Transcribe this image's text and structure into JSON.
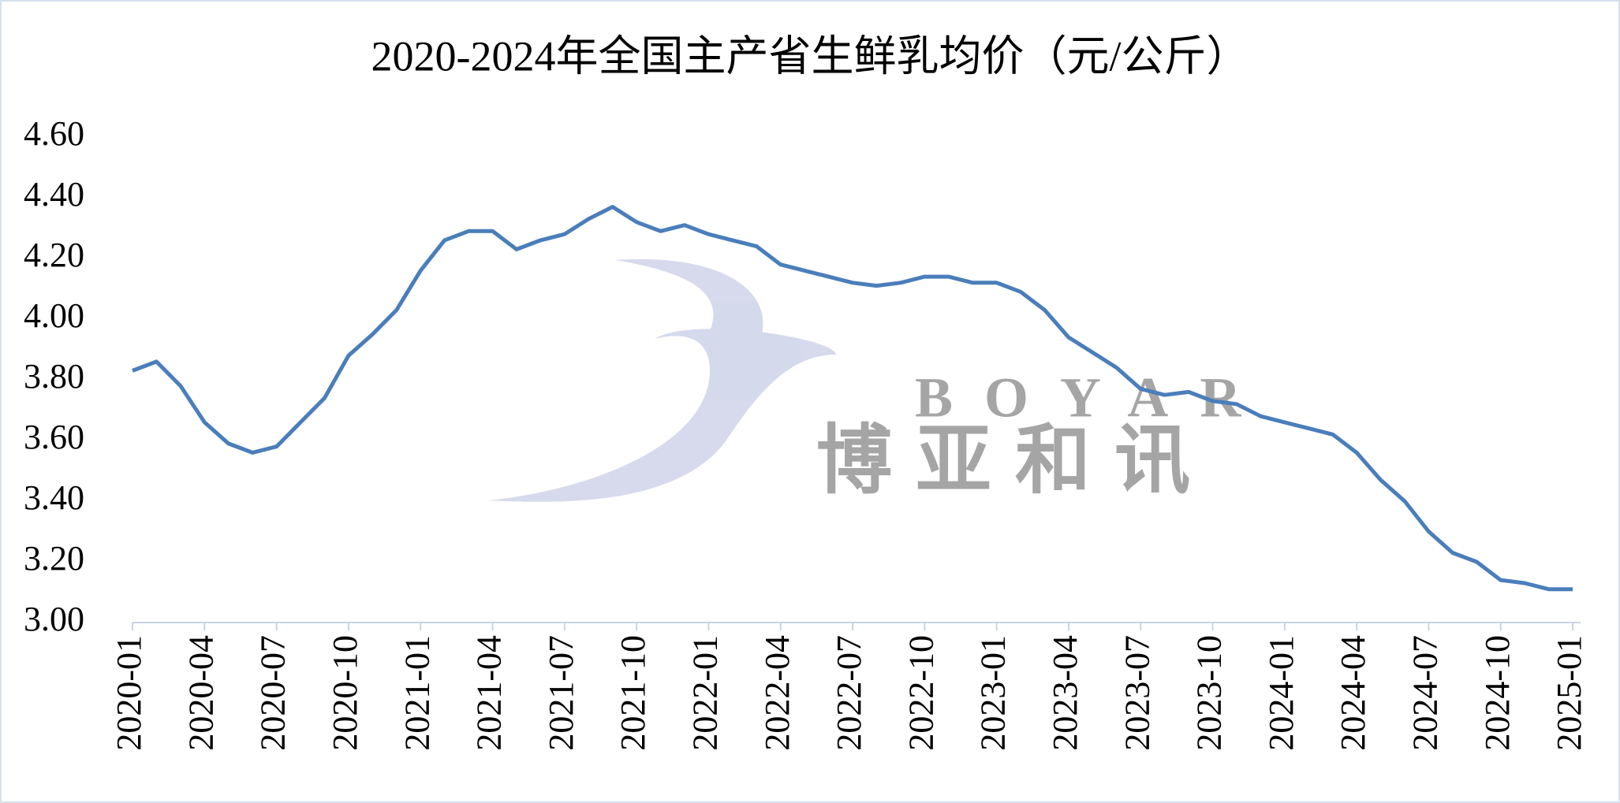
{
  "chart_data": {
    "type": "line",
    "title": "2020-2024年全国主产省生鲜乳均价（元/公斤）",
    "categories": [
      "2020-01",
      null,
      null,
      "2020-04",
      null,
      null,
      "2020-07",
      null,
      null,
      "2020-10",
      null,
      null,
      "2021-01",
      null,
      null,
      "2021-04",
      null,
      null,
      "2021-07",
      null,
      null,
      "2021-10",
      null,
      null,
      "2022-01",
      null,
      null,
      "2022-04",
      null,
      null,
      "2022-07",
      null,
      null,
      "2022-10",
      null,
      null,
      "2023-01",
      null,
      null,
      "2023-04",
      null,
      null,
      "2023-07",
      null,
      null,
      "2023-10",
      null,
      null,
      "2024-01",
      null,
      null,
      "2024-04",
      null,
      null,
      "2024-07",
      null,
      null,
      "2024-10",
      null,
      null,
      "2025-01"
    ],
    "values": [
      3.83,
      3.86,
      3.78,
      3.66,
      3.59,
      3.56,
      3.58,
      3.66,
      3.74,
      3.88,
      3.95,
      4.03,
      4.16,
      4.26,
      4.29,
      4.29,
      4.23,
      4.26,
      4.28,
      4.33,
      4.37,
      4.32,
      4.29,
      4.31,
      4.28,
      4.26,
      4.24,
      4.18,
      4.16,
      4.14,
      4.12,
      4.11,
      4.12,
      4.14,
      4.14,
      4.12,
      4.12,
      4.09,
      4.03,
      3.94,
      3.89,
      3.84,
      3.77,
      3.75,
      3.76,
      3.73,
      3.72,
      3.68,
      3.66,
      3.64,
      3.62,
      3.56,
      3.47,
      3.4,
      3.3,
      3.23,
      3.2,
      3.14,
      3.13,
      3.11,
      3.11
    ],
    "color": "#4a7ebb",
    "ylim": [
      3.0,
      4.6
    ],
    "yticks": [
      {
        "value": 3.0,
        "label": "3.00"
      },
      {
        "value": 3.2,
        "label": "3.20"
      },
      {
        "value": 3.4,
        "label": "3.40"
      },
      {
        "value": 3.6,
        "label": "3.60"
      },
      {
        "value": 3.8,
        "label": "3.80"
      },
      {
        "value": 4.0,
        "label": "4.00"
      },
      {
        "value": 4.2,
        "label": "4.20"
      },
      {
        "value": 4.4,
        "label": "4.40"
      },
      {
        "value": 4.6,
        "label": "4.60"
      }
    ],
    "grid": false
  },
  "watermark": {
    "brand": "BOYAR",
    "name": "博亚和讯"
  }
}
